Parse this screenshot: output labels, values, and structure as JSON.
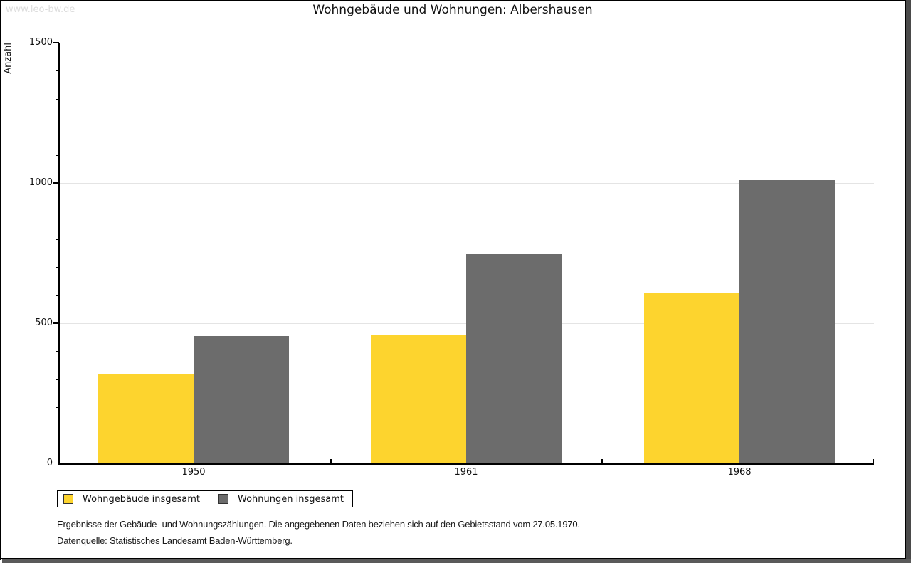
{
  "watermark": "www.leo-bw.de",
  "title": "Wohngebäude und Wohnungen: Albershausen",
  "chart_data": {
    "type": "bar",
    "title": "Wohngebäude und Wohnungen: Albershausen",
    "xlabel": "",
    "ylabel": "Anzahl",
    "categories": [
      "1950",
      "1961",
      "1968"
    ],
    "series": [
      {
        "name": "Wohngebäude insgesamt",
        "color": "#FDD42E",
        "values": [
          317,
          460,
          610
        ]
      },
      {
        "name": "Wohnungen insgesamt",
        "color": "#6C6C6C",
        "values": [
          455,
          747,
          1011
        ]
      }
    ],
    "ylim": [
      0,
      1500
    ],
    "yticks": [
      0,
      500,
      1000,
      1500
    ],
    "minor_tick_step": 100,
    "grid": "horizontal-major",
    "legend_position": "bottom-left"
  },
  "footer": {
    "line1": "Ergebnisse der Gebäude- und Wohnungszählungen. Die angegebenen Daten beziehen sich auf den Gebietsstand vom 27.05.1970.",
    "line2": "Datenquelle: Statistisches Landesamt Baden-Württemberg."
  }
}
